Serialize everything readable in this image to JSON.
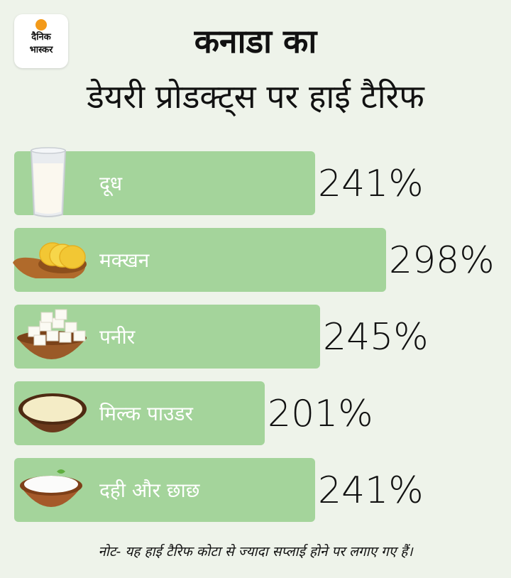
{
  "logo": {
    "line1": "दैनिक",
    "line2": "भास्कर"
  },
  "title_line1": "कनाडा का",
  "title_line2": "डेयरी प्रोडक्ट्स पर हाई टैरिफ",
  "chart_data": {
    "type": "bar",
    "orientation": "horizontal",
    "categories": [
      "दूध",
      "मक्खन",
      "पनीर",
      "मिल्क पाउडर",
      "दही और छाछ"
    ],
    "values": [
      241,
      298,
      245,
      201,
      241
    ],
    "value_labels": [
      "241%",
      "298%",
      "245%",
      "201%",
      "241%"
    ],
    "icons": [
      "milk-glass-icon",
      "butter-icon",
      "paneer-icon",
      "milk-powder-icon",
      "curd-icon"
    ],
    "bar_color": "#a4d49b",
    "title": "कनाडा का डेयरी प्रोडक्ट्स पर हाई टैरिफ",
    "xlabel": "",
    "ylabel": "",
    "grid": false,
    "legend": "none"
  },
  "note": "नोट- यह हाई टैरिफ कोटा से ज्यादा सप्लाई होने पर लगाए गए हैं।"
}
